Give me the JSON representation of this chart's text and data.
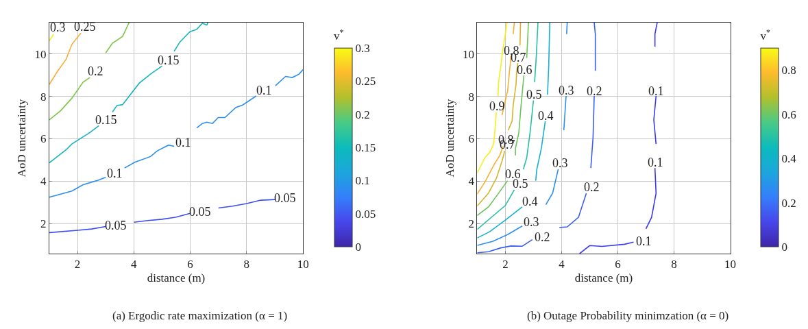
{
  "chart_data": [
    {
      "type": "line",
      "title": "(a) Ergodic rate maximization (α = 1)",
      "xlabel": "distance (m)",
      "ylabel": "AoD uncertainty",
      "clabel": "v$^{*}$",
      "xlim": [
        1,
        10
      ],
      "xticks": [
        2,
        4,
        6,
        8,
        10
      ],
      "ylim": [
        0.58,
        11.48
      ],
      "yticks": [
        2,
        4,
        6,
        8,
        10
      ],
      "grid": true,
      "clim": [
        0,
        0.3
      ],
      "cticks": [
        0,
        0.05,
        0.1,
        0.15,
        0.2,
        0.25,
        0.3
      ],
      "series": [
        {
          "name": "0.05",
          "color": "#3a4cf5",
          "x": [
            1,
            2,
            2.5,
            3.0
          ],
          "values": [
            1.57,
            1.68,
            1.74,
            1.86
          ]
        },
        {
          "name": "0.05",
          "color": "#3a4cf5",
          "x": [
            4.0,
            4.5,
            5,
            5.5,
            6
          ],
          "values": [
            2.06,
            2.14,
            2.2,
            2.3,
            2.48
          ]
        },
        {
          "name": "0.05",
          "color": "#3a4cf5",
          "x": [
            7,
            7.5,
            8,
            8.5,
            9
          ],
          "values": [
            2.73,
            2.82,
            2.94,
            3.1,
            3.13
          ]
        },
        {
          "name": "0.1",
          "color": "#2b8ef0",
          "x": [
            1,
            1.8,
            2.2,
            2.68,
            3.0
          ],
          "values": [
            3.24,
            3.53,
            3.83,
            4.02,
            4.18
          ]
        },
        {
          "name": "0.1",
          "color": "#2b8ef0",
          "x": [
            3.67,
            4.03,
            4.59,
            4.83,
            5.23,
            5.43
          ],
          "values": [
            4.62,
            4.89,
            5.16,
            5.43,
            5.7,
            5.64
          ]
        },
        {
          "name": "0.1",
          "color": "#2b8ef0",
          "x": [
            6.23,
            6.43,
            6.59,
            6.79,
            6.99,
            7.23,
            7.62,
            7.86,
            8.34
          ],
          "values": [
            6.51,
            6.72,
            6.78,
            6.72,
            7.0,
            7.0,
            7.48,
            7.59,
            8.02
          ]
        },
        {
          "color": "#2b8ef0",
          "x": [
            9.02,
            9.38,
            9.62,
            9.86,
            10
          ],
          "values": [
            8.5,
            8.94,
            8.89,
            9.05,
            9.26
          ]
        },
        {
          "name": "0.15",
          "color": "#17b4c0",
          "x": [
            1,
            1.6,
            1.8,
            2.44,
            2.76
          ],
          "values": [
            4.86,
            5.48,
            5.75,
            6.29,
            6.62
          ]
        },
        {
          "name": "0.15",
          "color": "#17b4c0",
          "x": [
            3.24,
            3.4,
            3.6,
            4.19,
            4.59,
            5.0
          ],
          "values": [
            7.26,
            7.57,
            7.61,
            8.62,
            9.05,
            9.43
          ]
        },
        {
          "color": "#17b4c0",
          "x": [
            5.43,
            5.63,
            5.99,
            6.23,
            6.43,
            6.59,
            6.63
          ],
          "values": [
            10.13,
            10.56,
            11.05,
            11.16,
            11.45,
            11.37,
            11.48
          ]
        },
        {
          "name": "0.2",
          "color": "#7cc54a",
          "x": [
            1,
            1.4,
            1.8,
            2.2,
            2.44
          ],
          "values": [
            6.89,
            7.32,
            7.91,
            8.67,
            8.89
          ]
        },
        {
          "color": "#7cc54a",
          "x": [
            3.0,
            3.24,
            3.6,
            3.83
          ],
          "values": [
            10.05,
            10.51,
            10.83,
            11.48
          ]
        },
        {
          "name": "0.25",
          "color": "#f8ac3a",
          "x": [
            1,
            1.28,
            1.6,
            1.8,
            2.12
          ],
          "values": [
            8.56,
            9.16,
            9.75,
            10.45,
            10.99
          ]
        },
        {
          "name": "0.3",
          "color": "#f5f01a",
          "x": [
            1,
            1.16
          ],
          "values": [
            10.62,
            10.94
          ]
        }
      ]
    },
    {
      "type": "line",
      "title": "(b) Outage Probability minimzation (α = 0)",
      "xlabel": "distance (m)",
      "ylabel": "AoD uncertainty",
      "clabel": "v$^{*}$",
      "xlim": [
        1,
        10
      ],
      "xticks": [
        2,
        4,
        6,
        8,
        10
      ],
      "ylim": [
        0.58,
        11.48
      ],
      "yticks": [
        2,
        4,
        6,
        8,
        10
      ],
      "grid": true,
      "clim": [
        0,
        0.9
      ],
      "cticks": [
        0,
        0.2,
        0.4,
        0.6,
        0.8
      ],
      "series": [
        {
          "name": "0.1",
          "color": "#3a3af0",
          "x": [
            4.64,
            5.0,
            5.44,
            6.24,
            6.56
          ],
          "values": [
            0.58,
            0.96,
            0.92,
            1.02,
            1.12
          ]
        },
        {
          "name": "0.1",
          "color": "#3a3af0",
          "x": [
            7.0,
            7.2,
            7.36,
            7.32
          ],
          "values": [
            1.75,
            2.29,
            3.43,
            4.62
          ]
        },
        {
          "name": "0.1",
          "color": "#3a3af0",
          "x": [
            7.36,
            7.28,
            7.36
          ],
          "values": [
            5.75,
            6.89,
            8.02
          ]
        },
        {
          "color": "#3a3af0",
          "x": [
            7.32,
            7.32,
            7.4
          ],
          "values": [
            10.35,
            10.94,
            11.48
          ]
        },
        {
          "name": "0.2",
          "color": "#3a5df5",
          "x": [
            1,
            1.4,
            1.84,
            2.2,
            2.6,
            2.96
          ],
          "values": [
            0.62,
            0.67,
            0.85,
            0.94,
            0.93,
            1.24
          ]
        },
        {
          "name": "0.2",
          "color": "#3a5df5",
          "x": [
            3.92,
            4.2,
            4.6,
            4.88
          ],
          "values": [
            1.81,
            1.84,
            2.29,
            3.43
          ]
        },
        {
          "name": "0.2",
          "color": "#3a5df5",
          "x": [
            5.04,
            5.12,
            5.16
          ],
          "values": [
            4.62,
            6.08,
            8.02
          ]
        },
        {
          "color": "#3a5df5",
          "x": [
            5.2,
            5.2,
            5.16
          ],
          "values": [
            9.21,
            10.94,
            11.48
          ]
        },
        {
          "name": "0.3",
          "color": "#2b8ef0",
          "x": [
            1,
            1.56,
            2.08,
            2.6
          ],
          "values": [
            0.97,
            1.16,
            1.48,
            1.88
          ]
        },
        {
          "name": "0.3",
          "color": "#2b8ef0",
          "x": [
            3.44,
            3.68,
            3.88
          ],
          "values": [
            2.89,
            3.43,
            4.56
          ]
        },
        {
          "name": "0.3",
          "color": "#2b8ef0",
          "x": [
            4.08,
            4.16
          ],
          "values": [
            6.4,
            8.02
          ]
        },
        {
          "color": "#2b8ef0",
          "x": [
            4.18,
            4.2
          ],
          "values": [
            10.94,
            11.48
          ]
        },
        {
          "name": "0.4",
          "color": "#15b0d0",
          "x": [
            1,
            1.44,
            2.0,
            2.6
          ],
          "values": [
            1.32,
            1.61,
            2.16,
            2.78
          ]
        },
        {
          "name": "0.4",
          "color": "#15b0d0",
          "x": [
            3.08,
            3.12,
            3.28,
            3.42
          ],
          "values": [
            4.02,
            4.56,
            5.54,
            6.83
          ]
        },
        {
          "color": "#15b0d0",
          "x": [
            3.5,
            3.54,
            3.58
          ],
          "values": [
            8.08,
            9.32,
            11.48
          ]
        },
        {
          "name": "0.5",
          "color": "#25c0a0",
          "x": [
            1,
            1.52,
            2.0,
            2.32
          ],
          "values": [
            1.72,
            2.31,
            2.85,
            3.59
          ]
        },
        {
          "name": "0.5",
          "color": "#25c0a0",
          "x": [
            2.64,
            2.76,
            2.88,
            3.0
          ],
          "values": [
            4.56,
            5.1,
            6.29,
            7.81
          ]
        },
        {
          "color": "#25c0a0",
          "x": [
            3.04,
            3.1,
            3.16
          ],
          "values": [
            8.67,
            9.86,
            11.48
          ]
        },
        {
          "name": "0.6",
          "color": "#6cc45a",
          "x": [
            1,
            1.4,
            1.76,
            2.08
          ],
          "values": [
            2.38,
            2.78,
            3.43,
            4.02
          ]
        },
        {
          "name": "0.6",
          "color": "#6cc45a",
          "x": [
            2.36,
            2.36,
            2.48,
            2.56,
            2.66
          ],
          "values": [
            5.21,
            5.54,
            6.29,
            7.59,
            8.99
          ]
        },
        {
          "color": "#6cc45a",
          "x": [
            2.76,
            2.8,
            2.82
          ],
          "values": [
            9.81,
            10.84,
            11.48
          ]
        },
        {
          "name": "0.7",
          "color": "#d6b42a",
          "x": [
            1,
            1.4,
            1.68,
            1.88,
            1.98
          ],
          "values": [
            2.83,
            3.43,
            4.13,
            4.94,
            5.43
          ]
        },
        {
          "name": "0.7",
          "color": "#d6b42a",
          "x": [
            2.1,
            2.24,
            2.28,
            2.38,
            2.4,
            2.44
          ],
          "values": [
            6.4,
            6.83,
            7.59,
            8.56,
            9.1,
            9.57
          ]
        },
        {
          "color": "#d6b42a",
          "x": [
            2.52,
            2.54
          ],
          "values": [
            10.4,
            11.48
          ]
        },
        {
          "name": "0.8",
          "color": "#f5b030",
          "x": [
            1,
            1.28,
            1.6,
            1.8,
            1.92
          ],
          "values": [
            3.39,
            3.97,
            4.78,
            5.21,
            5.64
          ]
        },
        {
          "name": "0.8",
          "color": "#f5b030",
          "x": [
            1.88,
            2.0,
            2.08,
            2.14,
            2.18,
            2.2
          ],
          "values": [
            7.1,
            7.81,
            8.24,
            9.1,
            9.59,
            9.91
          ]
        },
        {
          "color": "#f5b030",
          "x": [
            2.28,
            2.32
          ],
          "values": [
            10.94,
            11.48
          ]
        },
        {
          "name": "0.9",
          "color": "#f5f01a",
          "x": [
            1,
            1.28,
            1.44,
            1.58,
            1.62,
            1.68
          ],
          "values": [
            4.38,
            5.12,
            5.34,
            5.75,
            6.24,
            7.26
          ]
        },
        {
          "color": "#f5f01a",
          "x": [
            1.74,
            1.76,
            1.84,
            1.9,
            2.0,
            2.06
          ],
          "values": [
            8.02,
            8.67,
            9.43,
            10.13,
            10.94,
            11.48
          ]
        }
      ]
    }
  ]
}
